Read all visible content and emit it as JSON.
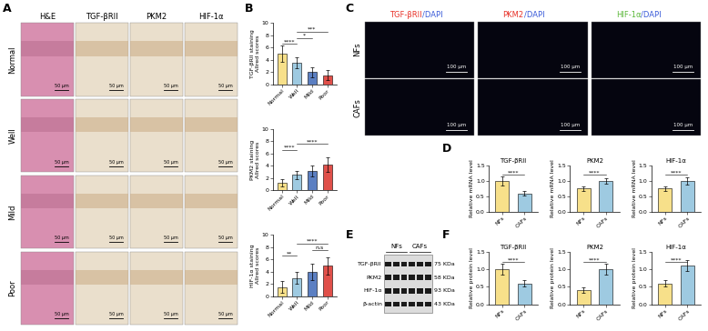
{
  "panel_labels": [
    "A",
    "B",
    "C",
    "D",
    "E",
    "F"
  ],
  "image_panels": {
    "A": {
      "columns": [
        "H&E",
        "TGF-βRII",
        "PKM2",
        "HIF-1α"
      ],
      "rows": [
        "Normal",
        "Well",
        "Mild",
        "Poor"
      ],
      "scale_bar": "50 μm"
    },
    "C": {
      "columns": [
        [
          {
            "text": "TGF-βRII",
            "color": "#e8332a"
          },
          {
            "text": "/DAPI",
            "color": "#3a5bd9"
          }
        ],
        [
          {
            "text": "PKM2",
            "color": "#e8332a"
          },
          {
            "text": "/DAPI",
            "color": "#3a5bd9"
          }
        ],
        [
          {
            "text": "HIF-1α",
            "color": "#5cb83a"
          },
          {
            "text": "/DAPI",
            "color": "#3a5bd9"
          }
        ]
      ],
      "rows": [
        "NFs",
        "CAFs"
      ],
      "scale_bar": "100 μm"
    },
    "E": {
      "groups": [
        "NFs",
        "CAFs"
      ],
      "proteins": [
        "TGF-βRII",
        "PKM2",
        "HIF-1α",
        "β-actin"
      ],
      "sizes": [
        "75 KDa",
        "58 KDa",
        "93 KDa",
        "43 KDa"
      ]
    }
  },
  "chart_data": [
    {
      "type": "bar",
      "ylabel": "TGF-βRII staining\nAllred scores",
      "categories": [
        "Normal",
        "Well",
        "Mild",
        "Poor"
      ],
      "values": [
        5.0,
        3.5,
        2.0,
        1.5
      ],
      "errors": [
        1.3,
        0.9,
        0.8,
        0.8
      ],
      "colors": [
        "#f7e08a",
        "#9ecae1",
        "#5b7fc2",
        "#e0504a"
      ],
      "ylim": [
        0,
        10
      ],
      "yticks": [
        0,
        2,
        4,
        6,
        8,
        10
      ],
      "significance": [
        {
          "from": "Normal",
          "to": "Well",
          "label": "****"
        },
        {
          "from": "Well",
          "to": "Mild",
          "label": "*"
        },
        {
          "from": "Well",
          "to": "Poor",
          "label": "***"
        }
      ]
    },
    {
      "type": "bar",
      "ylabel": "PKM2 staining\nAllred scores",
      "categories": [
        "Normal",
        "Well",
        "Mild",
        "Poor"
      ],
      "values": [
        1.2,
        2.5,
        3.2,
        4.2
      ],
      "errors": [
        0.6,
        0.7,
        0.9,
        1.2
      ],
      "colors": [
        "#f7e08a",
        "#9ecae1",
        "#5b7fc2",
        "#e0504a"
      ],
      "ylim": [
        0,
        10
      ],
      "yticks": [
        0,
        2,
        4,
        6,
        8,
        10
      ],
      "significance": [
        {
          "from": "Normal",
          "to": "Well",
          "label": "****"
        },
        {
          "from": "Well",
          "to": "Poor",
          "label": "****"
        }
      ]
    },
    {
      "type": "bar",
      "ylabel": "HIF-1α staining\nAllred scores",
      "categories": [
        "Normal",
        "Well",
        "Mild",
        "Poor"
      ],
      "values": [
        1.5,
        3.0,
        4.0,
        5.0
      ],
      "errors": [
        1.0,
        1.0,
        1.3,
        1.4
      ],
      "colors": [
        "#f7e08a",
        "#9ecae1",
        "#5b7fc2",
        "#e0504a"
      ],
      "ylim": [
        0,
        10
      ],
      "yticks": [
        0,
        2,
        4,
        6,
        8,
        10
      ],
      "significance": [
        {
          "from": "Normal",
          "to": "Well",
          "label": "**"
        },
        {
          "from": "Mild",
          "to": "Poor",
          "label": "n.s"
        },
        {
          "from": "Well",
          "to": "Poor",
          "label": "****"
        }
      ]
    },
    {
      "type": "bar",
      "title": "TGF-βRII",
      "ylabel": "Relative mRNA level",
      "categories": [
        "NFs",
        "CAFs"
      ],
      "values": [
        1.0,
        0.6
      ],
      "errors": [
        0.15,
        0.08
      ],
      "colors": [
        "#f7e08a",
        "#9ecae1"
      ],
      "ylim": [
        0,
        1.5
      ],
      "yticks": [
        0.0,
        0.5,
        1.0,
        1.5
      ],
      "significance": [
        {
          "from": "NFs",
          "to": "CAFs",
          "label": "****"
        }
      ]
    },
    {
      "type": "bar",
      "title": "PKM2",
      "ylabel": "Relative mRNA level",
      "categories": [
        "NFs",
        "CAFs"
      ],
      "values": [
        0.75,
        1.0
      ],
      "errors": [
        0.08,
        0.1
      ],
      "colors": [
        "#f7e08a",
        "#9ecae1"
      ],
      "ylim": [
        0,
        1.5
      ],
      "yticks": [
        0.0,
        0.5,
        1.0,
        1.5
      ],
      "significance": [
        {
          "from": "NFs",
          "to": "CAFs",
          "label": "****"
        }
      ]
    },
    {
      "type": "bar",
      "title": "HIF-1α",
      "ylabel": "Relative mRNA level",
      "categories": [
        "NFs",
        "CAFs"
      ],
      "values": [
        0.75,
        1.0
      ],
      "errors": [
        0.07,
        0.12
      ],
      "colors": [
        "#f7e08a",
        "#9ecae1"
      ],
      "ylim": [
        0,
        1.5
      ],
      "yticks": [
        0.0,
        0.5,
        1.0,
        1.5
      ],
      "significance": [
        {
          "from": "NFs",
          "to": "CAFs",
          "label": "****"
        }
      ]
    },
    {
      "type": "bar",
      "title": "TGF-βRII",
      "ylabel": "Relative protein level",
      "categories": [
        "NFs",
        "CAFs"
      ],
      "values": [
        1.0,
        0.6
      ],
      "errors": [
        0.15,
        0.1
      ],
      "colors": [
        "#f7e08a",
        "#9ecae1"
      ],
      "ylim": [
        0,
        1.5
      ],
      "yticks": [
        0.0,
        0.5,
        1.0,
        1.5
      ],
      "significance": [
        {
          "from": "NFs",
          "to": "CAFs",
          "label": "****"
        }
      ]
    },
    {
      "type": "bar",
      "title": "PKM2",
      "ylabel": "Relative protein level",
      "categories": [
        "NFs",
        "CAFs"
      ],
      "values": [
        0.4,
        1.0
      ],
      "errors": [
        0.08,
        0.15
      ],
      "colors": [
        "#f7e08a",
        "#9ecae1"
      ],
      "ylim": [
        0,
        1.5
      ],
      "yticks": [
        0.0,
        0.5,
        1.0,
        1.5
      ],
      "significance": [
        {
          "from": "NFs",
          "to": "CAFs",
          "label": "****"
        }
      ]
    },
    {
      "type": "bar",
      "title": "HIF-1α",
      "ylabel": "Relative protein level",
      "categories": [
        "NFs",
        "CAFs"
      ],
      "values": [
        0.6,
        1.1
      ],
      "errors": [
        0.1,
        0.15
      ],
      "colors": [
        "#f7e08a",
        "#9ecae1"
      ],
      "ylim": [
        0,
        1.5
      ],
      "yticks": [
        0.0,
        0.5,
        1.0,
        1.5
      ],
      "significance": [
        {
          "from": "NFs",
          "to": "CAFs",
          "label": "****"
        }
      ]
    }
  ]
}
